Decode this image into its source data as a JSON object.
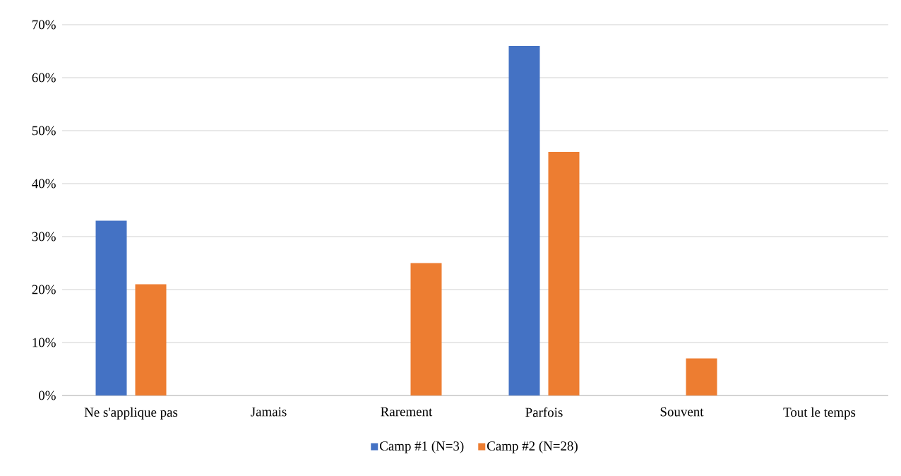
{
  "chart_data": {
    "type": "bar",
    "categories": [
      "Ne s'applique pas",
      "Jamais",
      "Rarement",
      "Parfois",
      "Souvent",
      "Tout le temps"
    ],
    "series": [
      {
        "name": "Camp #1 (N=3)",
        "color": "#4472c4",
        "values": [
          33,
          0,
          0,
          66,
          0,
          0
        ]
      },
      {
        "name": "Camp #2 (N=28)",
        "color": "#ed7d31",
        "values": [
          21,
          0,
          25,
          46,
          7,
          0
        ]
      }
    ],
    "ylim": [
      0,
      70
    ],
    "yticks": [
      {
        "value": 0,
        "label": "0%"
      },
      {
        "value": 10,
        "label": "10%"
      },
      {
        "value": 20,
        "label": "20%"
      },
      {
        "value": 30,
        "label": "30%"
      },
      {
        "value": 40,
        "label": "40%"
      },
      {
        "value": 50,
        "label": "50%"
      },
      {
        "value": 60,
        "label": "60%"
      },
      {
        "value": 70,
        "label": "70%"
      }
    ],
    "grid": "y",
    "legend": "bottom"
  }
}
